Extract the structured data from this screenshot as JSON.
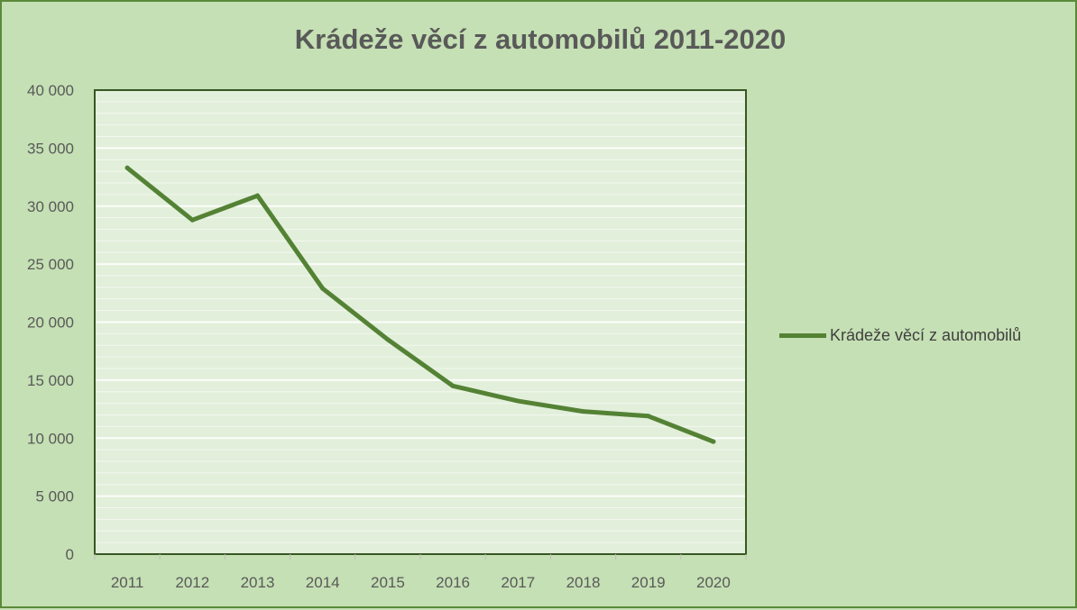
{
  "chart_data": {
    "type": "line",
    "title": "Krádeže věcí z automobilů 2011-2020",
    "x": [
      "2011",
      "2012",
      "2013",
      "2014",
      "2015",
      "2016",
      "2017",
      "2018",
      "2019",
      "2020"
    ],
    "series": [
      {
        "name": "Krádeže věcí z automobilů",
        "values": [
          33300,
          28800,
          30900,
          22900,
          18500,
          14500,
          13200,
          12300,
          11900,
          9700
        ]
      }
    ],
    "y_ticks": [
      "0",
      "5 000",
      "10 000",
      "15 000",
      "20 000",
      "25 000",
      "30 000",
      "35 000",
      "40 000"
    ],
    "ylim": [
      0,
      40000
    ],
    "grid": true,
    "legend_position": "right",
    "colors": {
      "line": "#548235",
      "plot_bg": "#e2efda",
      "outer_bg": "#c5e0b4",
      "axis": "#385723",
      "gridline": "#ffffff"
    }
  }
}
